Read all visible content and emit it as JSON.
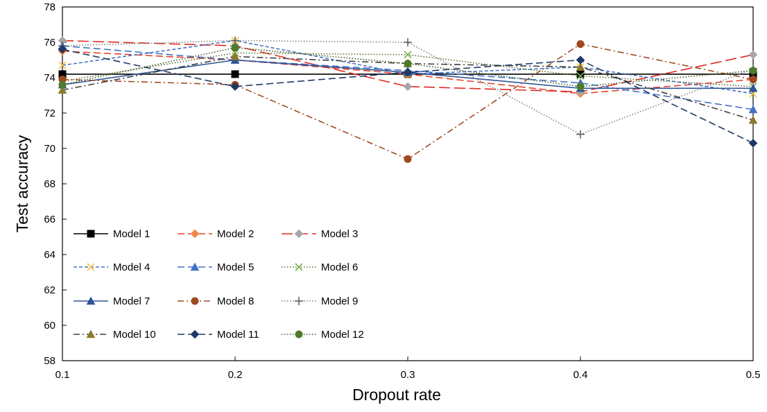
{
  "chart_data": {
    "type": "line",
    "xlabel": "Dropout rate",
    "ylabel": "Test accuracy",
    "x": [
      0.1,
      0.2,
      0.3,
      0.4,
      0.5
    ],
    "xlim": [
      0.1,
      0.5
    ],
    "ylim": [
      58,
      78
    ],
    "x_ticks": [
      "0.1",
      "0.2",
      "0.3",
      "0.4",
      "0.5"
    ],
    "y_ticks": [
      "58",
      "60",
      "62",
      "64",
      "66",
      "68",
      "70",
      "72",
      "74",
      "76",
      "78"
    ],
    "grid": false,
    "legend": {
      "position": "inside-lower-left",
      "columns": 3
    },
    "series": [
      {
        "name": "Model 1",
        "values": [
          74.2,
          74.2,
          74.2,
          74.2,
          74.2
        ],
        "color": "#000000",
        "dash": "solid",
        "marker": "square"
      },
      {
        "name": "Model 2",
        "values": [
          75.5,
          75.0,
          74.2,
          73.1,
          73.9
        ],
        "color": "#e8412c",
        "dash": "dash",
        "marker": "diamond",
        "marker_color": "#ee8a45"
      },
      {
        "name": "Model 3",
        "values": [
          76.1,
          75.8,
          73.5,
          73.2,
          75.3
        ],
        "color": "#e02a1e",
        "dash": "longdash",
        "marker": "diamond",
        "marker_color": "#a6a6a6"
      },
      {
        "name": "Model 4",
        "values": [
          74.7,
          76.1,
          74.2,
          74.6,
          73.1
        ],
        "color": "#4472c4",
        "dash": "shortdash",
        "marker": "x",
        "marker_color": "#f5c342"
      },
      {
        "name": "Model 5",
        "values": [
          75.8,
          75.0,
          74.4,
          73.7,
          72.2
        ],
        "color": "#4472c4",
        "dash": "dash",
        "marker": "triangle",
        "marker_color": "#4472c4"
      },
      {
        "name": "Model 6",
        "values": [
          73.8,
          75.4,
          75.3,
          74.1,
          73.5
        ],
        "color": "#5a6b2a",
        "dash": "dot",
        "marker": "x",
        "marker_color": "#70ad47"
      },
      {
        "name": "Model 7",
        "values": [
          73.6,
          75.0,
          74.3,
          73.4,
          73.4
        ],
        "color": "#2f5597",
        "dash": "solid",
        "marker": "triangle",
        "marker_color": "#2f5597"
      },
      {
        "name": "Model 8",
        "values": [
          73.9,
          73.6,
          69.4,
          75.9,
          73.9
        ],
        "color": "#9c4a1f",
        "dash": "dashdot",
        "marker": "circle",
        "marker_color": "#a0481e"
      },
      {
        "name": "Model 9",
        "values": [
          75.8,
          76.1,
          76.0,
          70.8,
          74.5
        ],
        "color": "#808080",
        "dash": "dot",
        "marker": "plus",
        "marker_color": "#595959"
      },
      {
        "name": "Model 10",
        "values": [
          73.3,
          75.2,
          74.8,
          74.6,
          71.6
        ],
        "color": "#3f3f3f",
        "dash": "dashdot",
        "marker": "triangle",
        "marker_color": "#8b7a2b"
      },
      {
        "name": "Model 11",
        "values": [
          75.6,
          73.5,
          74.3,
          75.0,
          70.3
        ],
        "color": "#1f3864",
        "dash": "dash",
        "marker": "diamond",
        "marker_color": "#1f3864"
      },
      {
        "name": "Model 12",
        "values": [
          73.6,
          75.7,
          74.8,
          73.5,
          74.4
        ],
        "color": "#375623",
        "dash": "dot",
        "marker": "circle",
        "marker_color": "#4e7a2c"
      }
    ]
  }
}
